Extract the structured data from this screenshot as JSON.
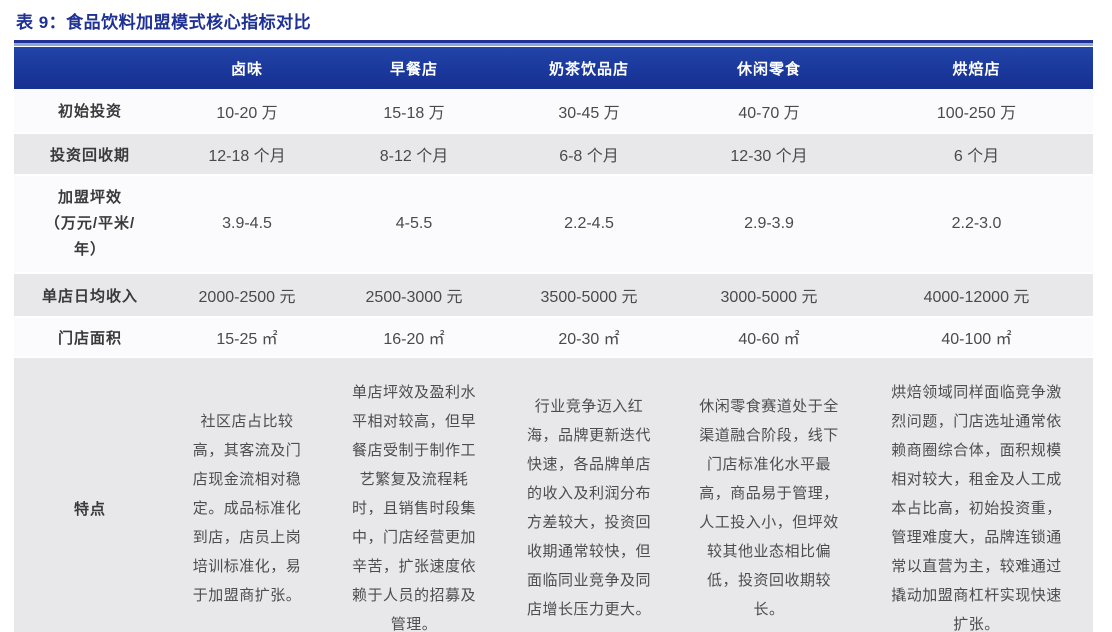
{
  "title": "表 9：食品饮料加盟模式核心指标对比",
  "table": {
    "columns": [
      "",
      "卤味",
      "早餐店",
      "奶茶饮品店",
      "休闲零食",
      "烘焙店"
    ],
    "rows": [
      {
        "label": "初始投资",
        "values": [
          "10-20 万",
          "15-18 万",
          "30-45 万",
          "40-70 万",
          "100-250 万"
        ]
      },
      {
        "label": "投资回收期",
        "values": [
          "12-18 个月",
          "8-12 个月",
          "6-8 个月",
          "12-30 个月",
          "6 个月"
        ]
      },
      {
        "label": "加盟坪效\n（万元/平米/\n年）",
        "values": [
          "3.9-4.5",
          "4-5.5",
          "2.2-4.5",
          "2.9-3.9",
          "2.2-3.0"
        ]
      },
      {
        "label": "单店日均收入",
        "values": [
          "2000-2500 元",
          "2500-3000 元",
          "3500-5000 元",
          "3000-5000 元",
          "4000-12000 元"
        ]
      },
      {
        "label": "门店面积",
        "values": [
          "15-25 ㎡",
          "16-20 ㎡",
          "20-30 ㎡",
          "40-60 ㎡",
          "40-100 ㎡"
        ]
      },
      {
        "label": "特点",
        "values": [
          "社区店占比较高，其客流及门店现金流相对稳定。成品标准化到店，店员上岗培训标准化，易于加盟商扩张。",
          "单店坪效及盈利水平相对较高，但早餐店受制于制作工艺繁复及流程耗时，且销售时段集中，门店经营更加辛苦，扩张速度依赖于人员的招募及管理。",
          "行业竞争迈入红海，品牌更新迭代快速，各品牌单店的收入及利润分布方差较大，投资回收期通常较快，但面临同业竞争及同店增长压力更大。",
          "休闲零食赛道处于全渠道融合阶段，线下门店标准化水平最高，商品易于管理，人工投入小，但坪效较其他业态相比偏低，投资回收期较长。",
          "烘焙领域同样面临竞争激烈问题，门店选址通常依赖商圈综合体，面积规模相对较大，租金及人工成本占比高，初始投资重，管理难度大，品牌连锁通常以直营为主，较难通过撬动加盟商杠杆实现快速扩张。"
        ]
      }
    ]
  },
  "colors": {
    "header_blue": "#1A379B",
    "title_navy": "#1F3194",
    "light_rule_blue": "#8FA6D9",
    "row_gray": "#E8E8EB",
    "row_white": "#FBFBFD",
    "body_text": "#4A4A4A"
  }
}
